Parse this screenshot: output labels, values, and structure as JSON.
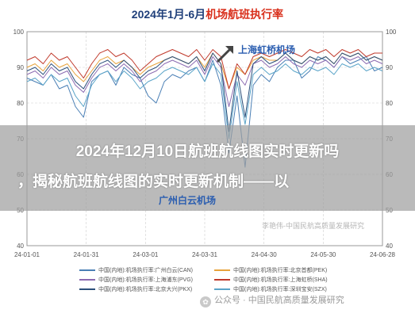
{
  "chart_title": {
    "prefix": "2024年1月-6月",
    "highlight": "机场航班执行率",
    "color": "#d9301c"
  },
  "overlay": {
    "line1": "2024年12月10日航班航线图实时更新吗",
    "line2": "，揭秘航班航线图的实时更新机制——以"
  },
  "annotations": {
    "top": "上海虹桥机场",
    "bottom": "广州白云机场"
  },
  "watermark": {
    "author": "李艳伟-中国民航高质量发展研究",
    "account": "公众号 · 中国民航高质量发展研究"
  },
  "chart_data": {
    "type": "line",
    "title": "2024年1月-6月机场航班执行率",
    "ylim": [
      40,
      100
    ],
    "yticks": [
      40,
      50,
      60,
      70,
      80,
      90,
      100
    ],
    "x_range": [
      "2024-01-01",
      "2024-06-28"
    ],
    "xtick_labels": [
      "24-01-01",
      "24-01-31",
      "24-03-01",
      "24-03-31",
      "24-04-30",
      "24-05-30",
      "24-06-28"
    ],
    "grid": true,
    "legend_position": "bottom",
    "series": [
      {
        "name": "中国(内地):机场执行率:广州白云(CAN)",
        "color": "#4a7fb5",
        "values": [
          87,
          86,
          85,
          88,
          84,
          85,
          79,
          76,
          86,
          88,
          89,
          85,
          90,
          88,
          87,
          82,
          80,
          86,
          88,
          87,
          89,
          90,
          86,
          92,
          85,
          66,
          82,
          62,
          85,
          88,
          86,
          90,
          92,
          92,
          87,
          89,
          93,
          92,
          90,
          93,
          91,
          92,
          93,
          89,
          90
        ]
      },
      {
        "name": "中国(内地):机场执行率:北京首都(PEK)",
        "color": "#e8a33c",
        "values": [
          90,
          91,
          89,
          92,
          90,
          91,
          88,
          86,
          89,
          92,
          93,
          91,
          92,
          90,
          88,
          90,
          91,
          92,
          93,
          92,
          91,
          93,
          90,
          94,
          91,
          84,
          90,
          88,
          92,
          93,
          92,
          92,
          94,
          92,
          91,
          93,
          92,
          93,
          91,
          94,
          93,
          94,
          92,
          93,
          92
        ]
      },
      {
        "name": "中国(内地):机场执行率:上海浦东(PVG)",
        "color": "#8c6bb1",
        "values": [
          88,
          89,
          87,
          90,
          88,
          89,
          85,
          83,
          87,
          90,
          91,
          89,
          91,
          89,
          86,
          88,
          89,
          91,
          92,
          91,
          90,
          92,
          88,
          93,
          90,
          79,
          88,
          85,
          91,
          92,
          90,
          91,
          93,
          91,
          90,
          92,
          91,
          92,
          90,
          93,
          92,
          93,
          91,
          92,
          91
        ]
      },
      {
        "name": "中国(内地):机场执行率:上海虹桥(SHA)",
        "color": "#c0392b",
        "values": [
          92,
          93,
          91,
          94,
          92,
          93,
          90,
          87,
          91,
          94,
          95,
          93,
          94,
          92,
          89,
          91,
          93,
          94,
          95,
          94,
          93,
          95,
          92,
          95,
          93,
          84,
          91,
          88,
          93,
          94,
          93,
          94,
          95,
          94,
          93,
          95,
          94,
          95,
          93,
          95,
          94,
          95,
          93,
          94,
          94
        ]
      },
      {
        "name": "中国(内地):机场执行率:北京大兴(PKX)",
        "color": "#2b4f7a",
        "values": [
          89,
          90,
          88,
          91,
          89,
          90,
          86,
          84,
          88,
          91,
          92,
          90,
          92,
          90,
          87,
          89,
          90,
          92,
          93,
          92,
          91,
          93,
          89,
          94,
          91,
          72,
          89,
          76,
          91,
          93,
          91,
          92,
          94,
          92,
          91,
          93,
          92,
          93,
          91,
          94,
          93,
          94,
          92,
          93,
          92
        ]
      },
      {
        "name": "中国(内地):机场执行率:深圳宝安(SZX)",
        "color": "#5aa4c8",
        "values": [
          86,
          87,
          85,
          88,
          86,
          87,
          82,
          79,
          85,
          88,
          89,
          86,
          89,
          87,
          84,
          86,
          87,
          89,
          90,
          89,
          88,
          90,
          86,
          91,
          88,
          70,
          86,
          74,
          88,
          90,
          88,
          89,
          91,
          89,
          88,
          90,
          89,
          90,
          88,
          91,
          90,
          91,
          89,
          90,
          89
        ]
      }
    ]
  }
}
